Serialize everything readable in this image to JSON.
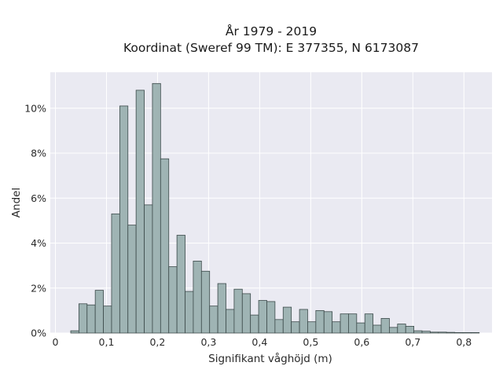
{
  "chart_data": {
    "type": "bar",
    "title_line1": "År 1979 - 2019",
    "title_line2": "Koordinat (Sweref 99 TM): E 377355, N 6173087",
    "xlabel": "Signifikant våghöjd (m)",
    "ylabel": "Andel",
    "xlim": [
      -0.01,
      0.855
    ],
    "ylim": [
      0,
      11.6
    ],
    "grid": true,
    "bin_width": 0.016,
    "x_ticks": [
      {
        "value": 0,
        "label": "0"
      },
      {
        "value": 0.1,
        "label": "0,1"
      },
      {
        "value": 0.2,
        "label": "0,2"
      },
      {
        "value": 0.3,
        "label": "0,3"
      },
      {
        "value": 0.4,
        "label": "0,4"
      },
      {
        "value": 0.5,
        "label": "0,5"
      },
      {
        "value": 0.6,
        "label": "0,6"
      },
      {
        "value": 0.7,
        "label": "0,7"
      },
      {
        "value": 0.8,
        "label": "0,8"
      }
    ],
    "y_ticks": [
      {
        "value": 0,
        "label": "0%"
      },
      {
        "value": 2,
        "label": "2%"
      },
      {
        "value": 4,
        "label": "4%"
      },
      {
        "value": 6,
        "label": "6%"
      },
      {
        "value": 8,
        "label": "8%"
      },
      {
        "value": 10,
        "label": "10%"
      }
    ],
    "bin_starts": [
      0.03,
      0.046,
      0.062,
      0.078,
      0.094,
      0.11,
      0.126,
      0.142,
      0.158,
      0.174,
      0.19,
      0.206,
      0.222,
      0.238,
      0.254,
      0.27,
      0.286,
      0.302,
      0.318,
      0.334,
      0.35,
      0.366,
      0.382,
      0.398,
      0.414,
      0.43,
      0.446,
      0.462,
      0.478,
      0.494,
      0.51,
      0.526,
      0.542,
      0.558,
      0.574,
      0.59,
      0.606,
      0.622,
      0.638,
      0.654,
      0.67,
      0.686,
      0.702,
      0.718,
      0.734,
      0.75,
      0.766,
      0.782,
      0.798,
      0.814
    ],
    "values": [
      0.1,
      1.3,
      1.25,
      1.9,
      1.2,
      5.3,
      10.1,
      4.8,
      10.8,
      5.7,
      11.1,
      7.75,
      2.95,
      4.35,
      1.85,
      3.2,
      2.75,
      1.2,
      2.2,
      1.05,
      1.95,
      1.75,
      0.8,
      1.45,
      1.4,
      0.6,
      1.15,
      0.5,
      1.05,
      0.5,
      1.0,
      0.95,
      0.5,
      0.85,
      0.85,
      0.45,
      0.85,
      0.35,
      0.65,
      0.25,
      0.4,
      0.3,
      0.1,
      0.08,
      0.04,
      0.04,
      0.03,
      0.02,
      0.02,
      0.02
    ],
    "colors": {
      "plot_background": "#eaeaf2",
      "grid": "#ffffff",
      "bar_fill": "#9fb4b4",
      "bar_edge": "#3c4a4a"
    }
  }
}
